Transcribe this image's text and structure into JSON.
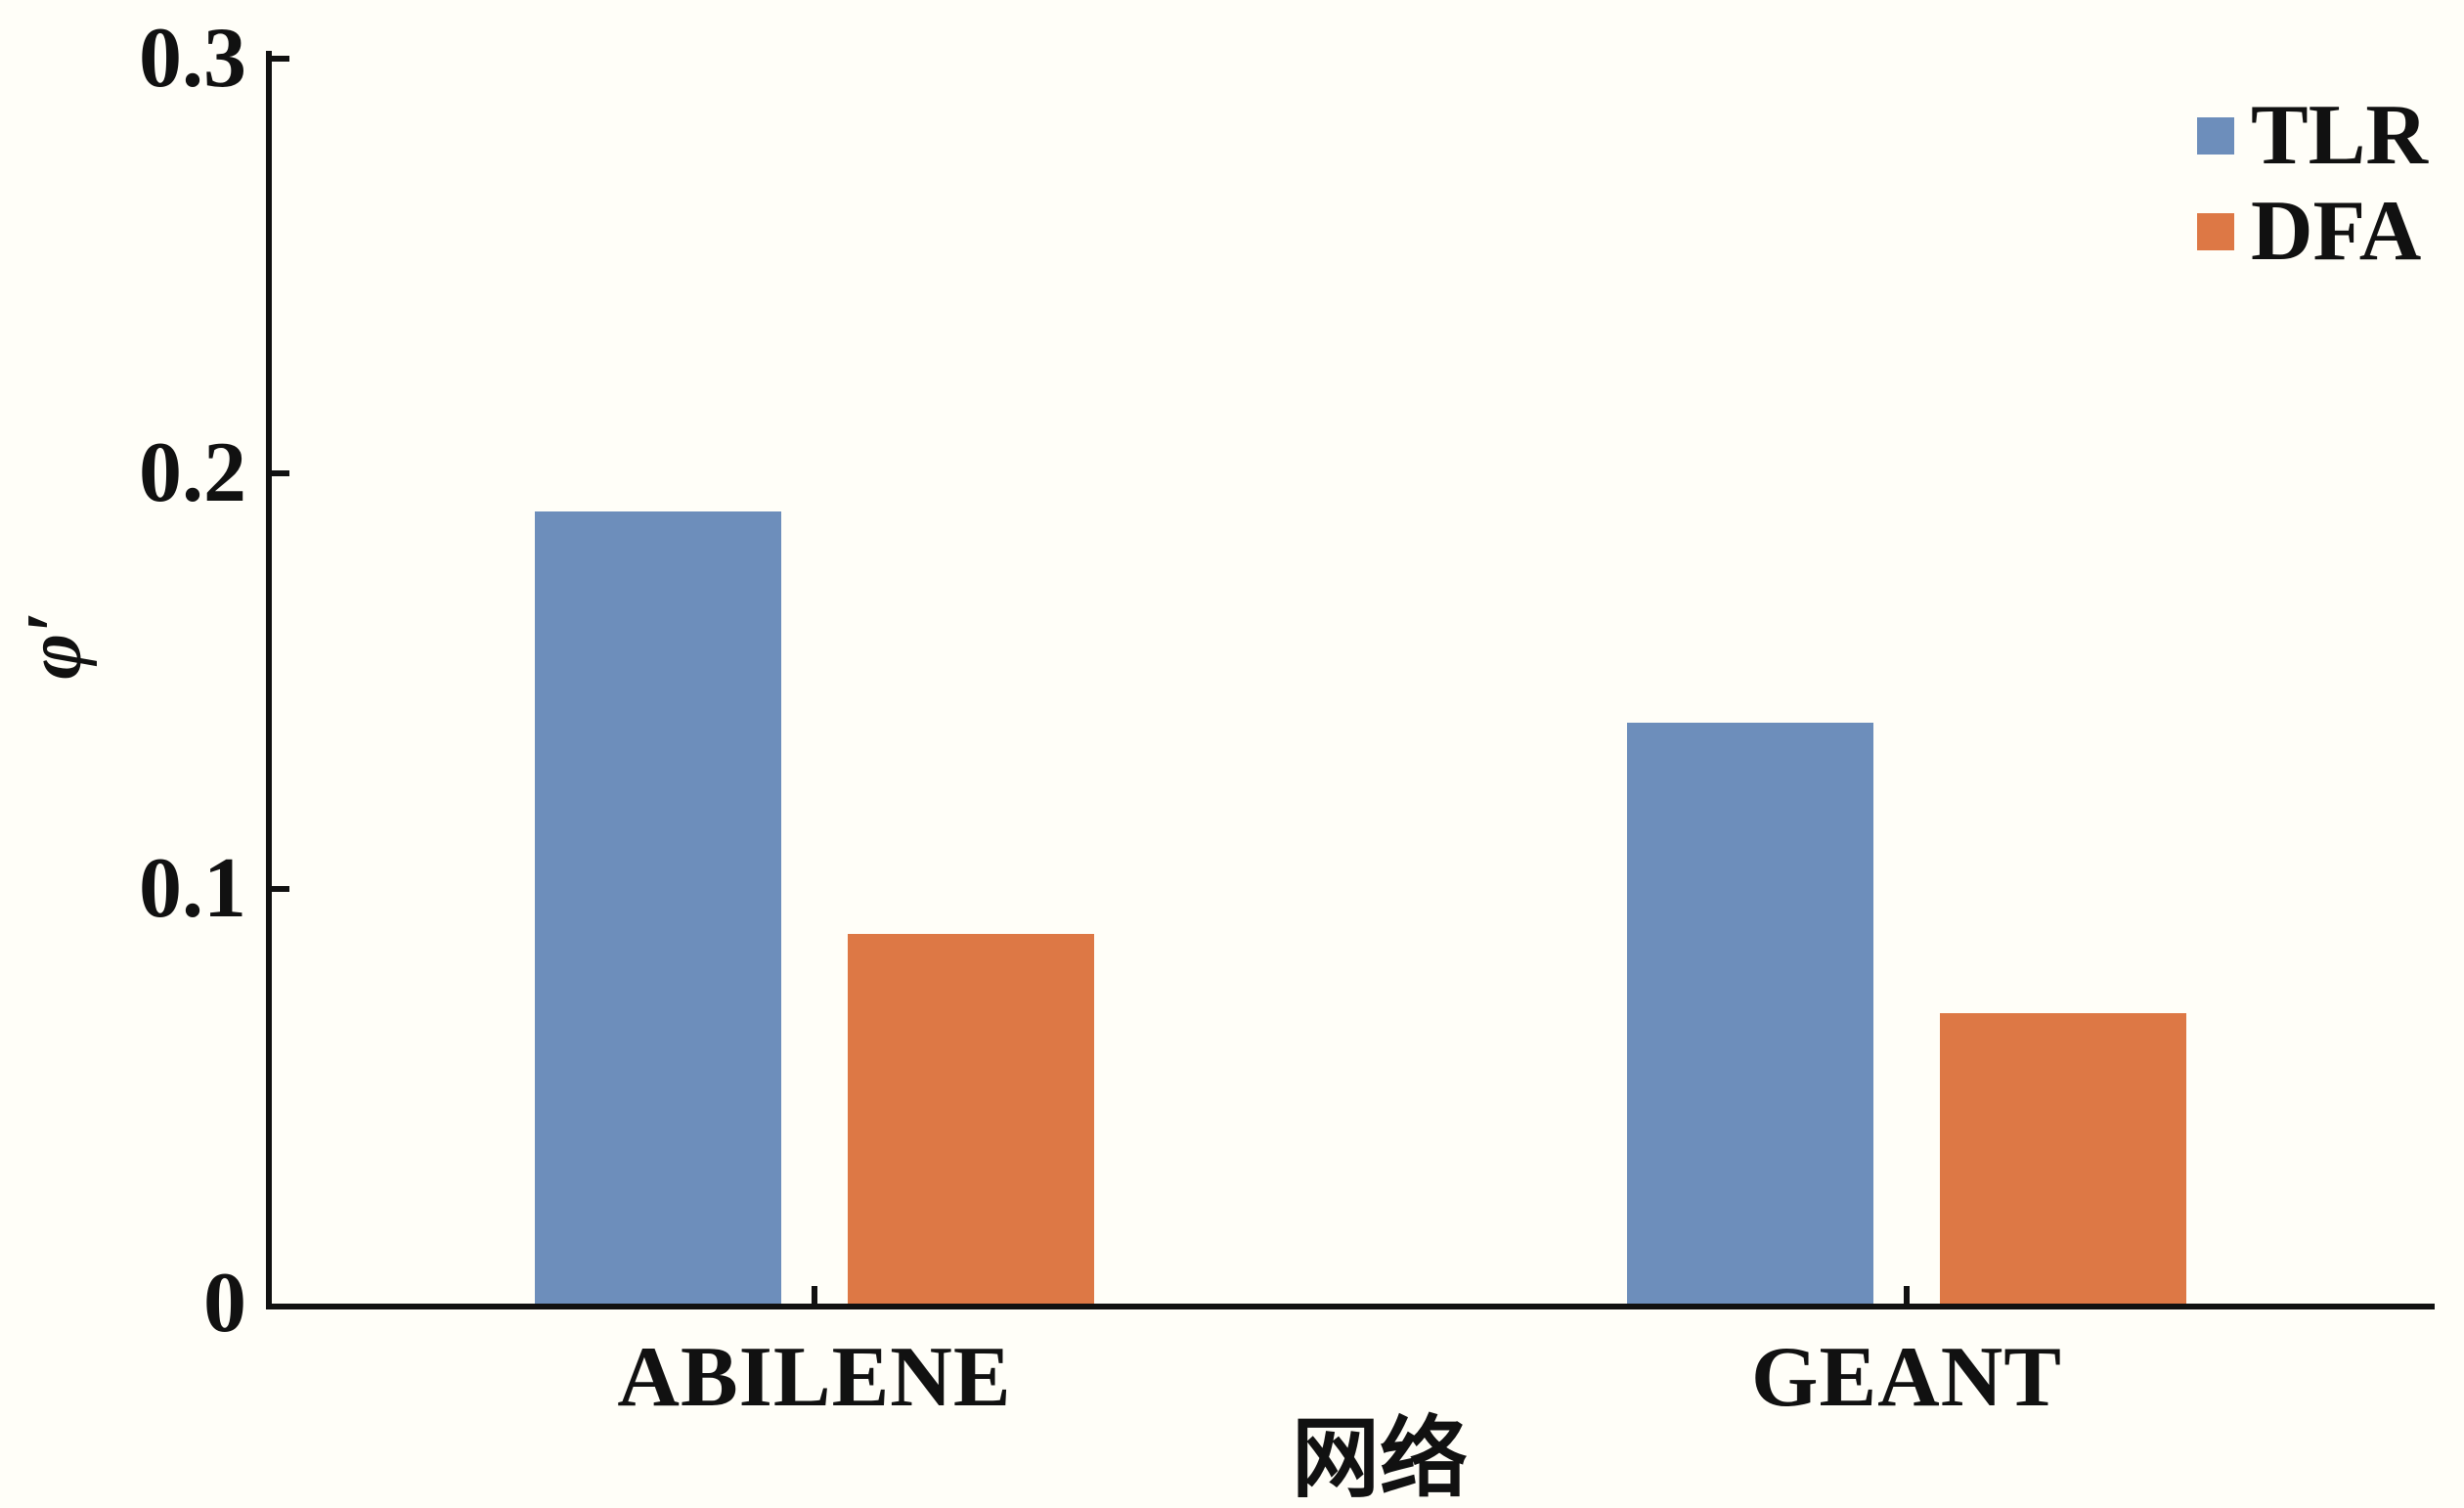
{
  "chart_data": {
    "type": "bar",
    "title": "",
    "xlabel": "网络",
    "ylabel": "φ′",
    "categories": [
      "ABILENE",
      "GEANT"
    ],
    "series": [
      {
        "name": "TLR",
        "color": "#6D8EBB",
        "values": [
          0.191,
          0.14
        ]
      },
      {
        "name": "DFA",
        "color": "#DD7845",
        "values": [
          0.089,
          0.07
        ]
      }
    ],
    "ylim": [
      0,
      0.3
    ],
    "yticks": [
      0,
      0.1,
      0.2,
      0.3
    ],
    "ytick_labels": [
      "0",
      "0.1",
      "0.2",
      "0.3"
    ],
    "grid": false,
    "legend_position": "top-right",
    "axis_color": "#111111",
    "background_color": "#FFFEF8"
  }
}
